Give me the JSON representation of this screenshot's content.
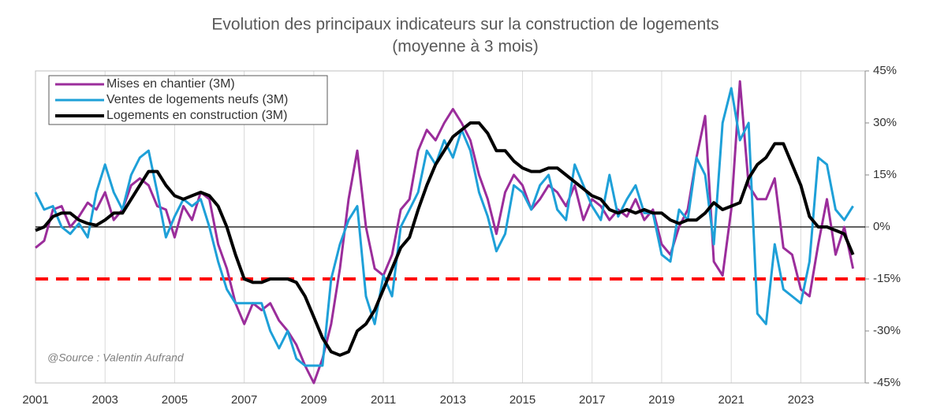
{
  "chart_data": {
    "type": "line",
    "title": "Evolution des principaux indicateurs sur la construction de logements",
    "subtitle": "(moyenne à 3 mois)",
    "annotation": "@Source : Valentin Aufrand",
    "x": [
      2001,
      2001.25,
      2001.5,
      2001.75,
      2002,
      2002.25,
      2002.5,
      2002.75,
      2003,
      2003.25,
      2003.5,
      2003.75,
      2004,
      2004.25,
      2004.5,
      2004.75,
      2005,
      2005.25,
      2005.5,
      2005.75,
      2006,
      2006.25,
      2006.5,
      2006.75,
      2007,
      2007.25,
      2007.5,
      2007.75,
      2008,
      2008.25,
      2008.5,
      2008.75,
      2009,
      2009.25,
      2009.5,
      2009.75,
      2010,
      2010.25,
      2010.5,
      2010.75,
      2011,
      2011.25,
      2011.5,
      2011.75,
      2012,
      2012.25,
      2012.5,
      2012.75,
      2013,
      2013.25,
      2013.5,
      2013.75,
      2014,
      2014.25,
      2014.5,
      2014.75,
      2015,
      2015.25,
      2015.5,
      2015.75,
      2016,
      2016.25,
      2016.5,
      2016.75,
      2017,
      2017.25,
      2017.5,
      2017.75,
      2018,
      2018.25,
      2018.5,
      2018.75,
      2019,
      2019.25,
      2019.5,
      2019.75,
      2020,
      2020.25,
      2020.5,
      2020.75,
      2021,
      2021.25,
      2021.5,
      2021.75,
      2022,
      2022.25,
      2022.5,
      2022.75,
      2023,
      2023.25,
      2023.5,
      2023.75,
      2024,
      2024.25,
      2024.5
    ],
    "series": [
      {
        "name": "Mises en chantier (3M)",
        "color": "#9b2d9b",
        "width": 3,
        "values": [
          -6,
          -4,
          5,
          6,
          0,
          3,
          7,
          5,
          10,
          2,
          5,
          12,
          14,
          12,
          6,
          5,
          -3,
          6,
          2,
          10,
          8,
          -5,
          -12,
          -22,
          -28,
          -22,
          -24,
          -22,
          -27,
          -30,
          -34,
          -40,
          -45,
          -38,
          -28,
          -12,
          8,
          22,
          0,
          -12,
          -14,
          -8,
          5,
          8,
          22,
          28,
          25,
          30,
          34,
          30,
          25,
          15,
          8,
          -2,
          10,
          15,
          12,
          5,
          8,
          12,
          10,
          6,
          12,
          2,
          8,
          6,
          2,
          5,
          3,
          8,
          2,
          5,
          -5,
          -8,
          0,
          5,
          20,
          32,
          -10,
          -14,
          5,
          42,
          12,
          8,
          8,
          14,
          -6,
          -8,
          -18,
          -20,
          -5,
          8,
          -8,
          0,
          -12
        ]
      },
      {
        "name": "Ventes de logements neufs (3M)",
        "color": "#1ea0d8",
        "width": 3,
        "values": [
          10,
          5,
          6,
          0,
          -2,
          1,
          -3,
          10,
          18,
          10,
          5,
          15,
          20,
          22,
          10,
          -3,
          3,
          8,
          6,
          8,
          0,
          -10,
          -18,
          -22,
          -22,
          -22,
          -22,
          -30,
          -35,
          -30,
          -38,
          -40,
          -40,
          -40,
          -15,
          -5,
          2,
          6,
          -20,
          -28,
          -14,
          -20,
          0,
          5,
          10,
          22,
          18,
          25,
          20,
          28,
          22,
          10,
          3,
          -7,
          -2,
          12,
          10,
          5,
          12,
          15,
          5,
          2,
          18,
          12,
          6,
          2,
          15,
          3,
          8,
          12,
          4,
          4,
          -8,
          -10,
          5,
          2,
          20,
          15,
          -5,
          30,
          40,
          25,
          30,
          -25,
          -28,
          -5,
          -18,
          -20,
          -22,
          -10,
          20,
          18,
          5,
          2,
          6
        ]
      },
      {
        "name": "Logements en construction (3M)",
        "color": "#000000",
        "width": 4,
        "values": [
          -1,
          0,
          3,
          4,
          4,
          2,
          1,
          0.5,
          2,
          4,
          4,
          8,
          12,
          16,
          16,
          12,
          9,
          8,
          9,
          10,
          9,
          6,
          0,
          -8,
          -15,
          -16,
          -16,
          -15,
          -15,
          -15,
          -16,
          -20,
          -26,
          -32,
          -36,
          -37,
          -36,
          -30,
          -28,
          -24,
          -18,
          -12,
          -6,
          -3,
          5,
          12,
          18,
          22,
          26,
          28,
          30,
          30,
          27,
          22,
          22,
          19,
          17,
          16,
          16,
          17,
          17,
          15,
          13,
          11,
          9,
          8,
          5,
          4,
          5,
          4,
          5,
          4,
          4,
          2,
          1,
          2,
          2,
          4,
          7,
          5,
          6,
          7,
          14,
          18,
          20,
          24,
          24,
          18,
          12,
          3,
          0,
          0,
          -1,
          -2,
          -8
        ]
      }
    ],
    "reference_line": {
      "value": -15,
      "color": "#ff0000"
    },
    "xlim": [
      2001,
      2024.85
    ],
    "xticks": [
      2001,
      2003,
      2005,
      2007,
      2009,
      2011,
      2013,
      2015,
      2017,
      2019,
      2021,
      2023
    ],
    "ylim": [
      -45,
      45
    ],
    "yticks": [
      {
        "value": 45,
        "label": "45%"
      },
      {
        "value": 30,
        "label": "30%"
      },
      {
        "value": 15,
        "label": "15%"
      },
      {
        "value": 0,
        "label": "0%"
      },
      {
        "value": -15,
        "label": "-15%"
      },
      {
        "value": -30,
        "label": "-30%"
      },
      {
        "value": -45,
        "label": "-45%"
      }
    ],
    "grid": true,
    "legend": "top-left"
  }
}
